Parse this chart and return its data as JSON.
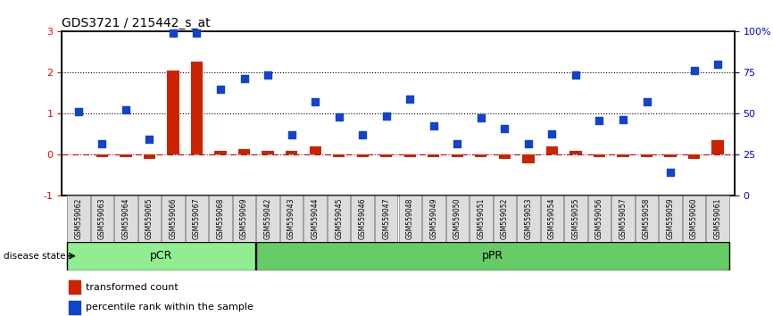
{
  "title": "GDS3721 / 215442_s_at",
  "samples": [
    "GSM559062",
    "GSM559063",
    "GSM559064",
    "GSM559065",
    "GSM559066",
    "GSM559067",
    "GSM559068",
    "GSM559069",
    "GSM559042",
    "GSM559043",
    "GSM559044",
    "GSM559045",
    "GSM559046",
    "GSM559047",
    "GSM559048",
    "GSM559049",
    "GSM559050",
    "GSM559051",
    "GSM559052",
    "GSM559053",
    "GSM559054",
    "GSM559055",
    "GSM559056",
    "GSM559057",
    "GSM559058",
    "GSM559059",
    "GSM559060",
    "GSM559061"
  ],
  "transformed_count": [
    0.0,
    -0.05,
    -0.05,
    -0.1,
    2.05,
    2.28,
    0.1,
    0.15,
    0.1,
    0.1,
    0.2,
    -0.05,
    -0.05,
    -0.05,
    -0.05,
    -0.05,
    -0.05,
    -0.05,
    -0.1,
    -0.2,
    0.2,
    0.1,
    -0.05,
    -0.05,
    -0.05,
    -0.05,
    -0.1,
    0.35
  ],
  "percentile_rank": [
    1.05,
    0.28,
    1.1,
    0.38,
    2.97,
    2.97,
    1.6,
    1.85,
    1.95,
    0.48,
    1.3,
    0.92,
    0.48,
    0.95,
    1.35,
    0.7,
    0.28,
    0.9,
    0.65,
    0.28,
    0.5,
    1.95,
    0.83,
    0.85,
    1.3,
    -0.42,
    2.05,
    2.2
  ],
  "groups": [
    {
      "label": "pCR",
      "start": 0,
      "end": 8,
      "color": "#90ee90"
    },
    {
      "label": "pPR",
      "start": 8,
      "end": 28,
      "color": "#66cc66"
    }
  ],
  "ylim_left": [
    -1,
    3
  ],
  "ylim_right": [
    0,
    100
  ],
  "yticks_left": [
    -1,
    0,
    1,
    2,
    3
  ],
  "yticks_right": [
    0,
    25,
    50,
    75,
    100
  ],
  "ytick_labels_right": [
    "0",
    "25",
    "50",
    "75",
    "100%"
  ],
  "hlines": [
    0,
    1,
    2
  ],
  "hline_styles": [
    "dashdot",
    "dotted",
    "dotted"
  ],
  "hline_colors": [
    "#cc0000",
    "black",
    "black"
  ],
  "bar_color": "#cc2200",
  "dot_color": "#1144cc",
  "dot_size": 40,
  "bar_width": 0.5,
  "disease_state_label": "disease state",
  "legend": [
    "transformed count",
    "percentile rank within the sample"
  ]
}
